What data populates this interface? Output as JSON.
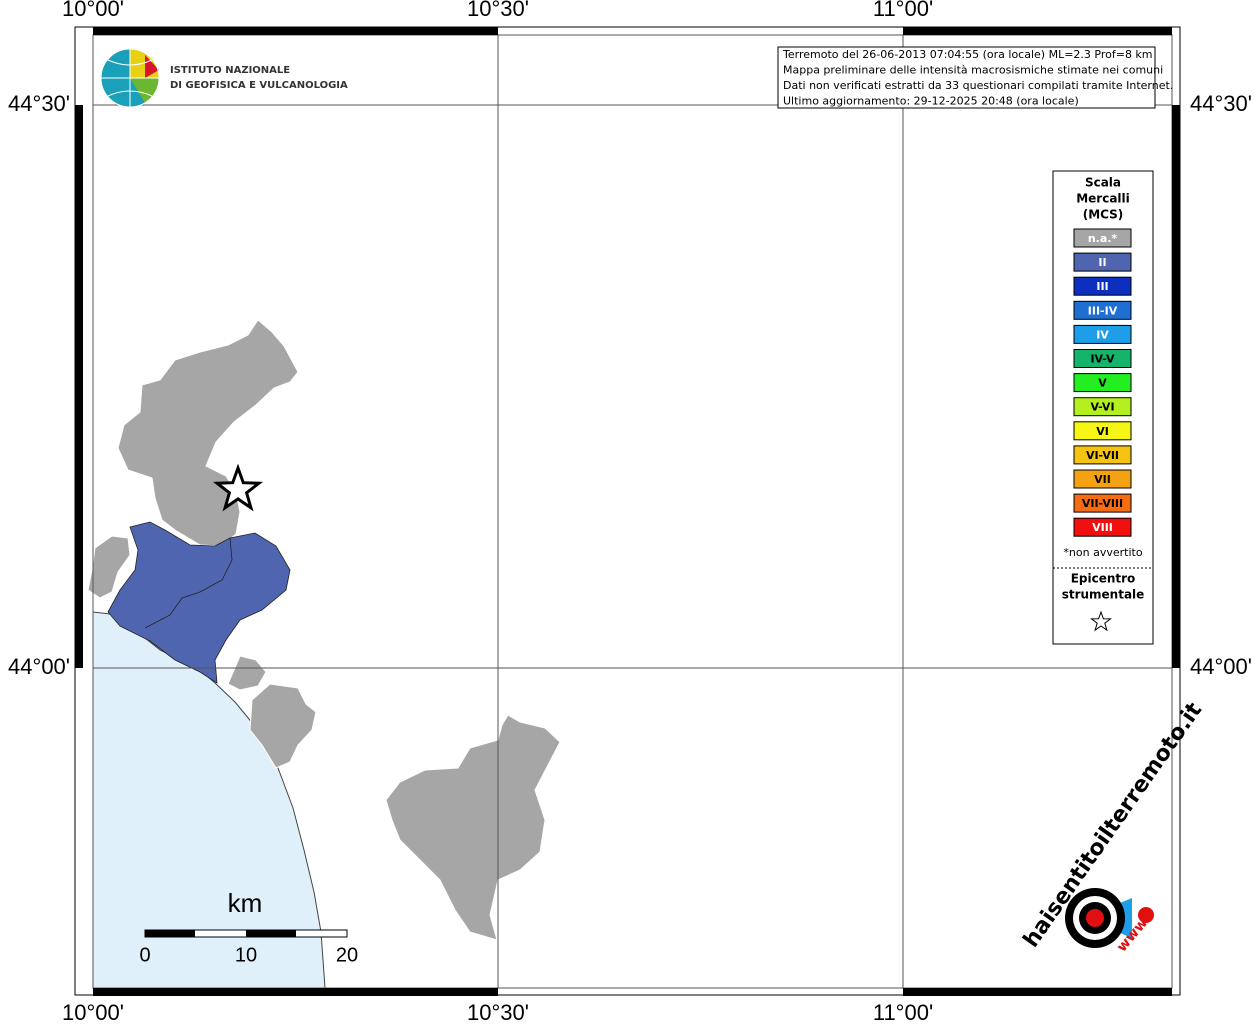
{
  "map": {
    "lon_labels": [
      "10°00'",
      "10°30'",
      "11°00'"
    ],
    "lat_labels": [
      "44°30'",
      "44°00'"
    ],
    "institute": [
      "ISTITUTO NAZIONALE",
      "DI GEOFISICA E VULCANOLOGIA"
    ],
    "info_lines": [
      "Terremoto del 26-06-2013 07:04:55 (ora locale) ML=2.3 Prof=8 km",
      "Mappa preliminare delle intensità macrosismiche stimate nei comuni",
      "Dati non verificati estratti da 33 questionari compilati tramite Internet.",
      "Ultimo aggiornamento: 29-12-2025 20:48 (ora locale)"
    ],
    "scale_unit": "km",
    "scale_labels": [
      "0",
      "10",
      "20"
    ],
    "site": "haisentitoilterremoto.it",
    "site_prefix": "www."
  },
  "legend": {
    "title": [
      "Scala",
      "Mercalli",
      "(MCS)"
    ],
    "items": [
      {
        "label": "n.a.*",
        "color": "#a6a6a6",
        "text_color": "#ffffff"
      },
      {
        "label": "II",
        "color": "#4f65b0",
        "text_color": "#ffffff"
      },
      {
        "label": "III",
        "color": "#0c2fbf",
        "text_color": "#ffffff"
      },
      {
        "label": "III-IV",
        "color": "#1f6fd2",
        "text_color": "#ffffff"
      },
      {
        "label": "IV",
        "color": "#1e9ee8",
        "text_color": "#ffffff"
      },
      {
        "label": "IV-V",
        "color": "#16b36a",
        "text_color": "#000000"
      },
      {
        "label": "V",
        "color": "#22ee22",
        "text_color": "#000000"
      },
      {
        "label": "V-VI",
        "color": "#b4f020",
        "text_color": "#000000"
      },
      {
        "label": "VI",
        "color": "#f5f516",
        "text_color": "#000000"
      },
      {
        "label": "VI-VII",
        "color": "#f5c412",
        "text_color": "#000000"
      },
      {
        "label": "VII",
        "color": "#f5a212",
        "text_color": "#000000"
      },
      {
        "label": "VII-VIII",
        "color": "#f56c12",
        "text_color": "#000000"
      },
      {
        "label": "VIII",
        "color": "#f01010",
        "text_color": "#ffffff"
      }
    ],
    "note": "*non avvertito",
    "epicenter": [
      "Epicentro",
      "strumentale"
    ]
  }
}
